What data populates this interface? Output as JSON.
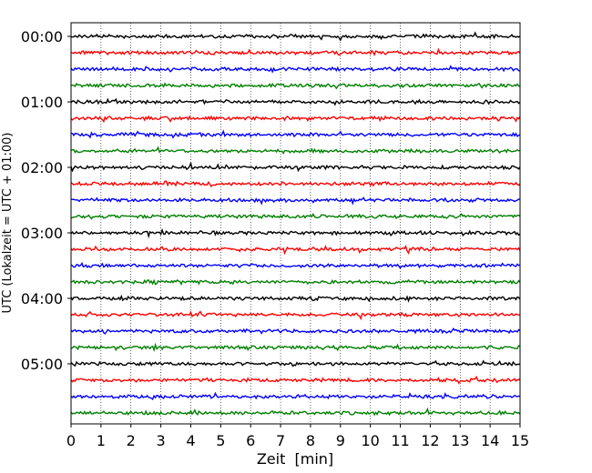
{
  "chart_data": {
    "type": "line",
    "xlabel": "Zeit  [min]",
    "ylabel": "UTC (Lokalzeit = UTC + 01:00)",
    "xlim": [
      0,
      15
    ],
    "x_ticks": [
      "0",
      "1",
      "2",
      "3",
      "4",
      "5",
      "6",
      "7",
      "8",
      "9",
      "10",
      "11",
      "12",
      "13",
      "14",
      "15"
    ],
    "y_tick_labels": [
      "00:00",
      "01:00",
      "02:00",
      "03:00",
      "04:00",
      "05:00"
    ],
    "trace_interval_min": 15,
    "traces_per_hour": 4,
    "trace_count": 24,
    "trace_colors": [
      "#000000",
      "#ff0000",
      "#0000ff",
      "#008000"
    ],
    "grid": "vertical dotted lines at each minute",
    "legend": "none"
  }
}
